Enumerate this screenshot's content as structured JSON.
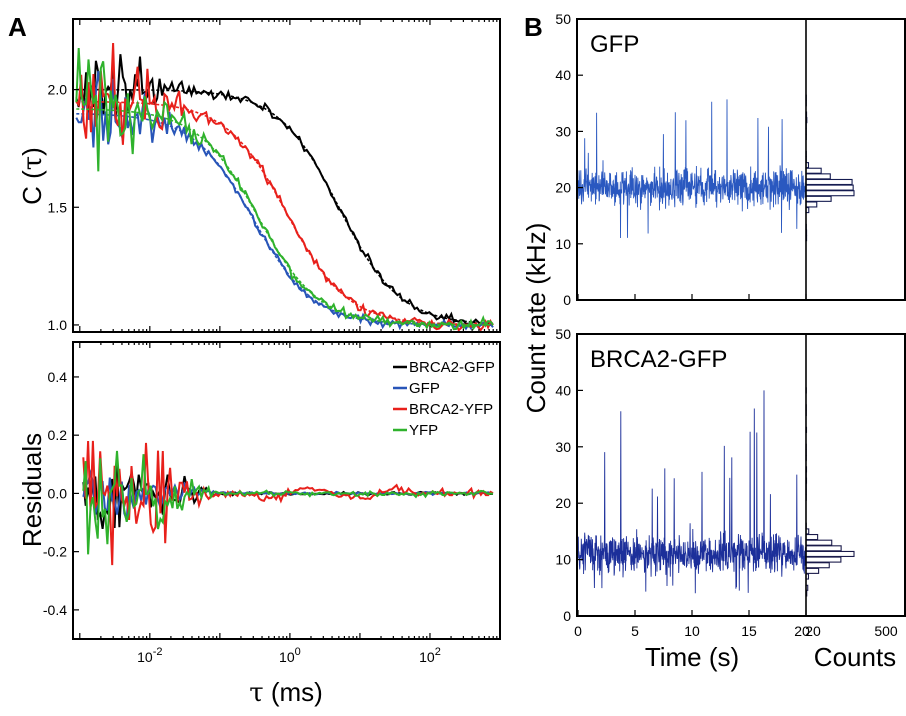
{
  "panel_a": {
    "letter": "A",
    "corr_ylabel_prefix": "C (",
    "corr_ylabel_symbol": "τ",
    "corr_ylabel_suffix": ")",
    "res_ylabel": "Residuals",
    "xlabel_symbol": "τ",
    "xlabel_rest": " (ms)"
  },
  "panel_b": {
    "letter": "B",
    "ylabel": "Count rate (kHz)",
    "xlabel_time": "Time (s)",
    "xlabel_counts": "Counts"
  },
  "chart_data": [
    {
      "id": "correlation",
      "type": "line",
      "title": "",
      "xlabel": "τ (ms)",
      "ylabel": "C (τ)",
      "xscale": "log",
      "xlim": [
        0.0008,
        1000
      ],
      "ylim": [
        0.97,
        2.3
      ],
      "x_ticks": [
        {
          "value": 0.01,
          "base": "10",
          "exp": "-2"
        },
        {
          "value": 1,
          "base": "10",
          "exp": "0"
        },
        {
          "value": 100,
          "base": "10",
          "exp": "2"
        }
      ],
      "y_ticks": [
        {
          "value": 1.0,
          "label": "1.0"
        },
        {
          "value": 1.5,
          "label": "1.5"
        },
        {
          "value": 2.0,
          "label": "2.0"
        }
      ],
      "grid": false,
      "series": [
        {
          "name": "BRCA2-GFP",
          "color": "#000000",
          "fit": {
            "amp": 1.0,
            "tauD": 5.0
          },
          "noise": 0.2
        },
        {
          "name": "GFP",
          "color": "#2855b8",
          "fit": {
            "amp": 0.9,
            "tauD": 0.3
          },
          "noise": 0.2
        },
        {
          "name": "BRCA2-YFP",
          "color": "#e8201b",
          "fit": {
            "amp": 0.95,
            "tauD": 0.9
          },
          "noise": 0.24
        },
        {
          "name": "YFP",
          "color": "#2fb22c",
          "fit": {
            "amp": 0.92,
            "tauD": 0.35
          },
          "noise": 0.26
        }
      ]
    },
    {
      "id": "residuals",
      "type": "line",
      "title": "",
      "xlabel": "τ (ms)",
      "ylabel": "Residuals",
      "xscale": "log",
      "xlim": [
        0.0008,
        1000
      ],
      "ylim": [
        -0.5,
        0.52
      ],
      "y_ticks": [
        {
          "value": -0.4,
          "label": "-0.4"
        },
        {
          "value": -0.2,
          "label": "-0.2"
        },
        {
          "value": 0.0,
          "label": "0.0"
        },
        {
          "value": 0.2,
          "label": "0.2"
        },
        {
          "value": 0.4,
          "label": "0.4"
        }
      ],
      "grid": false,
      "legend": {
        "placement": "top-right",
        "entries": [
          "BRCA2-GFP",
          "GFP",
          "BRCA2-YFP",
          "YFP"
        ]
      },
      "series": [
        {
          "name": "BRCA2-GFP",
          "color": "#000000",
          "amplitude": 0.15
        },
        {
          "name": "GFP",
          "color": "#2855b8",
          "amplitude": 0.1
        },
        {
          "name": "BRCA2-YFP",
          "color": "#e8201b",
          "amplitude": 0.3
        },
        {
          "name": "YFP",
          "color": "#2fb22c",
          "amplitude": 0.22
        }
      ]
    },
    {
      "id": "trace_gfp",
      "type": "line",
      "title": "GFP",
      "xlabel": "Time (s)",
      "ylabel": "Count rate (kHz)",
      "xlim": [
        0,
        20
      ],
      "ylim": [
        0,
        50
      ],
      "y_ticks": [
        0,
        10,
        20,
        30,
        40,
        50
      ],
      "color": "#2a58c0",
      "mean": 20,
      "spread": 3.2,
      "max_spike": 36,
      "min_dip": 11,
      "histogram": {
        "x_axis": "Counts",
        "peak_bin": 20,
        "max_count": 500
      }
    },
    {
      "id": "trace_brca2_gfp",
      "type": "line",
      "title": "BRCA2-GFP",
      "xlabel": "Time (s)",
      "ylabel": "Count rate (kHz)",
      "xlim": [
        0,
        20
      ],
      "ylim": [
        0,
        50
      ],
      "y_ticks": [
        0,
        10,
        20,
        30,
        40,
        50
      ],
      "x_ticks": [
        0,
        5,
        10,
        15,
        20
      ],
      "color": "#1c2f9a",
      "mean": 11,
      "spread": 3.5,
      "max_spike": 40,
      "min_dip": 4,
      "histogram": {
        "x_axis": "Counts",
        "peak_bin": 8,
        "max_count": 500,
        "ticks": [
          {
            "value": 20,
            "label": "20"
          },
          {
            "value": 500,
            "label": "500"
          }
        ]
      }
    }
  ]
}
